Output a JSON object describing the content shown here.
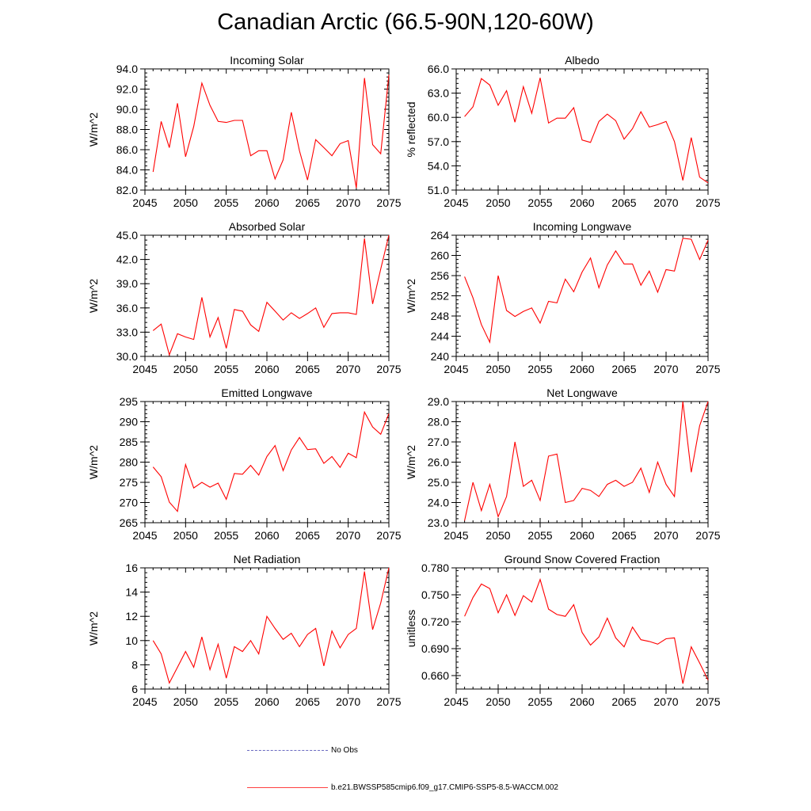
{
  "title": "Canadian Arctic (66.5-90N,120-60W)",
  "legend": {
    "obs_label": "No Obs",
    "obs_color": "#6a6ac0",
    "model_label": "b.e21.BWSSP585cmip6.f09_g17.CMIP6-SSP5-8.5-WACCM.002",
    "model_color": "#ff0000"
  },
  "chart_data": [
    {
      "type": "line",
      "title": "Incoming Solar",
      "ylabel": "W/m^2",
      "xlabel": "",
      "xlim": [
        2045,
        2075
      ],
      "xticks": [
        2045,
        2050,
        2055,
        2060,
        2065,
        2070,
        2075
      ],
      "ylim": [
        82,
        94
      ],
      "yticks": [
        "82.0",
        "84.0",
        "86.0",
        "88.0",
        "90.0",
        "92.0",
        "94.0"
      ],
      "x": [
        2046,
        2047,
        2048,
        2049,
        2050,
        2051,
        2052,
        2053,
        2054,
        2055,
        2056,
        2057,
        2058,
        2059,
        2060,
        2061,
        2062,
        2063,
        2064,
        2065,
        2066,
        2067,
        2068,
        2069,
        2070,
        2071,
        2072,
        2073,
        2074,
        2075
      ],
      "values": [
        83.8,
        88.8,
        86.2,
        90.6,
        85.3,
        88.3,
        92.6,
        90.4,
        88.8,
        88.7,
        88.9,
        88.9,
        85.4,
        85.9,
        85.9,
        83.1,
        85.0,
        89.7,
        85.9,
        83.0,
        87.0,
        86.2,
        85.4,
        86.6,
        86.9,
        82.2,
        93.1,
        86.5,
        85.6,
        93.4
      ]
    },
    {
      "type": "line",
      "title": "Albedo",
      "ylabel": "% reflected",
      "xlabel": "",
      "xlim": [
        2045,
        2075
      ],
      "xticks": [
        2045,
        2050,
        2055,
        2060,
        2065,
        2070,
        2075
      ],
      "ylim": [
        51,
        66
      ],
      "yticks": [
        "51.0",
        "54.0",
        "57.0",
        "60.0",
        "63.0",
        "66.0"
      ],
      "x": [
        2046,
        2047,
        2048,
        2049,
        2050,
        2051,
        2052,
        2053,
        2054,
        2055,
        2056,
        2057,
        2058,
        2059,
        2060,
        2061,
        2062,
        2063,
        2064,
        2065,
        2066,
        2067,
        2068,
        2069,
        2070,
        2071,
        2072,
        2073,
        2074,
        2075
      ],
      "values": [
        60.1,
        61.3,
        64.8,
        64.0,
        61.5,
        63.3,
        59.4,
        63.8,
        60.5,
        64.9,
        59.3,
        59.9,
        59.9,
        61.2,
        57.2,
        56.9,
        59.5,
        60.4,
        59.6,
        57.3,
        58.6,
        60.7,
        58.8,
        59.1,
        59.5,
        57.0,
        52.2,
        57.5,
        52.6,
        51.9
      ]
    },
    {
      "type": "line",
      "title": "Absorbed Solar",
      "ylabel": "W/m^2",
      "xlabel": "",
      "xlim": [
        2045,
        2075
      ],
      "xticks": [
        2045,
        2050,
        2055,
        2060,
        2065,
        2070,
        2075
      ],
      "ylim": [
        30,
        45
      ],
      "yticks": [
        "30.0",
        "33.0",
        "36.0",
        "39.0",
        "42.0",
        "45.0"
      ],
      "x": [
        2046,
        2047,
        2048,
        2049,
        2050,
        2051,
        2052,
        2053,
        2054,
        2055,
        2056,
        2057,
        2058,
        2059,
        2060,
        2061,
        2062,
        2063,
        2064,
        2065,
        2066,
        2067,
        2068,
        2069,
        2070,
        2071,
        2072,
        2073,
        2074,
        2075
      ],
      "values": [
        33.2,
        34.0,
        30.2,
        32.8,
        32.4,
        32.1,
        37.3,
        32.4,
        34.8,
        31.0,
        35.8,
        35.6,
        33.9,
        33.1,
        36.7,
        35.6,
        34.5,
        35.4,
        34.7,
        35.3,
        36.0,
        33.6,
        35.3,
        35.4,
        35.4,
        35.2,
        44.6,
        36.5,
        40.8,
        45.0
      ]
    },
    {
      "type": "line",
      "title": "Incoming Longwave",
      "ylabel": "W/m^2",
      "xlabel": "",
      "xlim": [
        2045,
        2075
      ],
      "xticks": [
        2045,
        2050,
        2055,
        2060,
        2065,
        2070,
        2075
      ],
      "ylim": [
        240,
        264
      ],
      "yticks": [
        "240",
        "244",
        "248",
        "252",
        "256",
        "260",
        "264"
      ],
      "x": [
        2046,
        2047,
        2048,
        2049,
        2050,
        2051,
        2052,
        2053,
        2054,
        2055,
        2056,
        2057,
        2058,
        2059,
        2060,
        2061,
        2062,
        2063,
        2064,
        2065,
        2066,
        2067,
        2068,
        2069,
        2070,
        2071,
        2072,
        2073,
        2074,
        2075
      ],
      "values": [
        255.8,
        251.6,
        246.3,
        242.8,
        256.0,
        249.1,
        247.9,
        248.9,
        249.6,
        246.6,
        250.9,
        250.6,
        255.3,
        252.8,
        256.7,
        259.5,
        253.6,
        258.1,
        260.9,
        258.3,
        258.3,
        254.1,
        256.9,
        252.7,
        257.2,
        256.9,
        263.4,
        263.2,
        259.2,
        263.0
      ]
    },
    {
      "type": "line",
      "title": "Emitted Longwave",
      "ylabel": "W/m^2",
      "xlabel": "",
      "xlim": [
        2045,
        2075
      ],
      "xticks": [
        2045,
        2050,
        2055,
        2060,
        2065,
        2070,
        2075
      ],
      "ylim": [
        265,
        295
      ],
      "yticks": [
        "265",
        "270",
        "275",
        "280",
        "285",
        "290",
        "295"
      ],
      "x": [
        2046,
        2047,
        2048,
        2049,
        2050,
        2051,
        2052,
        2053,
        2054,
        2055,
        2056,
        2057,
        2058,
        2059,
        2060,
        2061,
        2062,
        2063,
        2064,
        2065,
        2066,
        2067,
        2068,
        2069,
        2070,
        2071,
        2072,
        2073,
        2074,
        2075
      ],
      "values": [
        278.8,
        276.4,
        270.1,
        267.8,
        279.4,
        273.6,
        275.0,
        273.8,
        274.8,
        270.8,
        277.2,
        277.0,
        279.2,
        276.8,
        281.4,
        284.1,
        277.9,
        283.0,
        286.1,
        283.1,
        283.3,
        279.7,
        281.4,
        278.7,
        282.2,
        281.1,
        292.4,
        288.7,
        286.9,
        292.0
      ]
    },
    {
      "type": "line",
      "title": "Net Longwave",
      "ylabel": "W/m^2",
      "xlabel": "",
      "xlim": [
        2045,
        2075
      ],
      "xticks": [
        2045,
        2050,
        2055,
        2060,
        2065,
        2070,
        2075
      ],
      "ylim": [
        23,
        29
      ],
      "yticks": [
        "23.0",
        "24.0",
        "25.0",
        "26.0",
        "27.0",
        "28.0",
        "29.0"
      ],
      "x": [
        2046,
        2047,
        2048,
        2049,
        2050,
        2051,
        2052,
        2053,
        2054,
        2055,
        2056,
        2057,
        2058,
        2059,
        2060,
        2061,
        2062,
        2063,
        2064,
        2065,
        2066,
        2067,
        2068,
        2069,
        2070,
        2071,
        2072,
        2073,
        2074,
        2075
      ],
      "values": [
        23.1,
        25.0,
        23.6,
        24.9,
        23.3,
        24.3,
        27.0,
        24.8,
        25.1,
        24.1,
        26.3,
        26.4,
        24.0,
        24.1,
        24.7,
        24.6,
        24.3,
        24.9,
        25.1,
        24.8,
        25.0,
        25.7,
        24.5,
        26.0,
        24.9,
        24.3,
        29.0,
        25.5,
        27.8,
        29.0
      ]
    },
    {
      "type": "line",
      "title": "Net Radiation",
      "ylabel": "W/m^2",
      "xlabel": "",
      "xlim": [
        2045,
        2075
      ],
      "xticks": [
        2045,
        2050,
        2055,
        2060,
        2065,
        2070,
        2075
      ],
      "ylim": [
        6,
        16
      ],
      "yticks": [
        "6",
        "8",
        "10",
        "12",
        "14",
        "16"
      ],
      "x": [
        2046,
        2047,
        2048,
        2049,
        2050,
        2051,
        2052,
        2053,
        2054,
        2055,
        2056,
        2057,
        2058,
        2059,
        2060,
        2061,
        2062,
        2063,
        2064,
        2065,
        2066,
        2067,
        2068,
        2069,
        2070,
        2071,
        2072,
        2073,
        2074,
        2075
      ],
      "values": [
        10.0,
        8.9,
        6.5,
        7.8,
        9.1,
        7.8,
        10.3,
        7.6,
        9.7,
        6.9,
        9.5,
        9.1,
        10.0,
        8.9,
        12.0,
        11.0,
        10.1,
        10.6,
        9.5,
        10.5,
        11.0,
        7.9,
        10.8,
        9.4,
        10.5,
        11.0,
        15.7,
        10.9,
        13.1,
        16.0
      ]
    },
    {
      "type": "line",
      "title": "Ground Snow Covered Fraction",
      "ylabel": "unitless",
      "xlabel": "",
      "xlim": [
        2045,
        2075
      ],
      "xticks": [
        2045,
        2050,
        2055,
        2060,
        2065,
        2070,
        2075
      ],
      "ylim": [
        0.645,
        0.78
      ],
      "yticks": [
        "0.660",
        "0.690",
        "0.720",
        "0.750",
        "0.780"
      ],
      "x": [
        2046,
        2047,
        2048,
        2049,
        2050,
        2051,
        2052,
        2053,
        2054,
        2055,
        2056,
        2057,
        2058,
        2059,
        2060,
        2061,
        2062,
        2063,
        2064,
        2065,
        2066,
        2067,
        2068,
        2069,
        2070,
        2071,
        2072,
        2073,
        2074,
        2075
      ],
      "values": [
        0.726,
        0.747,
        0.762,
        0.757,
        0.73,
        0.75,
        0.727,
        0.749,
        0.742,
        0.767,
        0.734,
        0.728,
        0.726,
        0.739,
        0.708,
        0.694,
        0.703,
        0.724,
        0.702,
        0.692,
        0.714,
        0.7,
        0.698,
        0.695,
        0.701,
        0.702,
        0.651,
        0.692,
        0.674,
        0.655
      ]
    }
  ]
}
